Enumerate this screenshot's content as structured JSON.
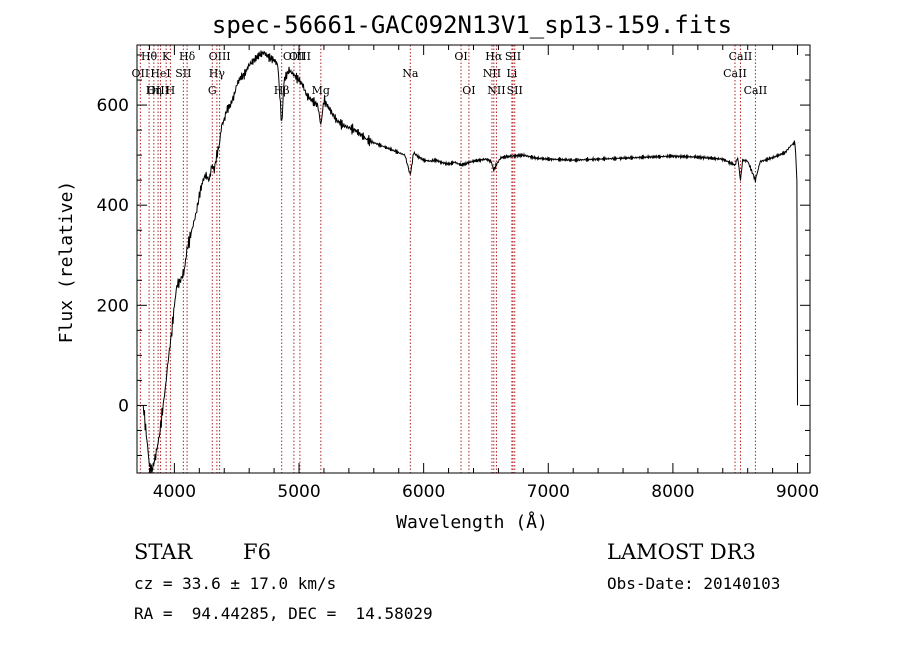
{
  "chart_data": {
    "type": "line",
    "title": "spec-56661-GAC092N13V1_sp13-159.fits",
    "xlabel": "Wavelength (Å)",
    "ylabel": "Flux (relative)",
    "xlim": [
      3700,
      9100
    ],
    "ylim": [
      -135,
      720
    ],
    "xticks": [
      4000,
      5000,
      6000,
      7000,
      8000,
      9000
    ],
    "yticks": [
      0,
      200,
      400,
      600
    ],
    "spectrum": {
      "name": "flux",
      "x": [
        3750,
        3780,
        3800,
        3820,
        3850,
        3880,
        3900,
        3930,
        3950,
        3980,
        4000,
        4020,
        4050,
        4080,
        4100,
        4120,
        4150,
        4180,
        4200,
        4230,
        4250,
        4280,
        4300,
        4320,
        4340,
        4360,
        4380,
        4400,
        4420,
        4450,
        4480,
        4500,
        4530,
        4560,
        4600,
        4640,
        4680,
        4720,
        4760,
        4800,
        4830,
        4861,
        4880,
        4920,
        4960,
        5000,
        5030,
        5060,
        5100,
        5150,
        5175,
        5200,
        5250,
        5300,
        5350,
        5400,
        5450,
        5500,
        5550,
        5600,
        5650,
        5700,
        5750,
        5800,
        5850,
        5893,
        5920,
        5950,
        6000,
        6050,
        6100,
        6150,
        6200,
        6250,
        6300,
        6350,
        6400,
        6450,
        6500,
        6540,
        6563,
        6580,
        6620,
        6700,
        6800,
        6900,
        7000,
        7200,
        7400,
        7600,
        7800,
        8000,
        8200,
        8400,
        8498,
        8520,
        8542,
        8560,
        8600,
        8662,
        8700,
        8800,
        8900,
        8950,
        8980,
        8995,
        9000
      ],
      "y": [
        0,
        -70,
        -120,
        -130,
        -100,
        -60,
        -20,
        40,
        90,
        150,
        200,
        240,
        250,
        270,
        310,
        330,
        360,
        390,
        420,
        450,
        460,
        450,
        480,
        470,
        500,
        520,
        560,
        570,
        590,
        600,
        620,
        640,
        655,
        660,
        680,
        690,
        700,
        705,
        695,
        690,
        680,
        560,
        650,
        670,
        660,
        650,
        640,
        620,
        610,
        600,
        560,
        610,
        590,
        570,
        560,
        555,
        550,
        540,
        530,
        525,
        520,
        515,
        510,
        505,
        500,
        460,
        505,
        498,
        490,
        488,
        490,
        485,
        482,
        486,
        480,
        484,
        488,
        490,
        492,
        488,
        470,
        480,
        495,
        498,
        500,
        494,
        492,
        490,
        492,
        494,
        496,
        498,
        496,
        492,
        480,
        495,
        450,
        490,
        488,
        450,
        487,
        495,
        505,
        520,
        525,
        450,
        0
      ]
    },
    "spectral_lines": [
      {
        "label": "Hθ",
        "wavelength": 3797,
        "label_row": 1
      },
      {
        "label": "OII",
        "wavelength": 3727,
        "label_row": 2
      },
      {
        "label": "OIII",
        "wavelength": 3869,
        "label_row": 3
      },
      {
        "label": "HeI",
        "wavelength": 3889,
        "label_row": 2
      },
      {
        "label": "Hη",
        "wavelength": 3835,
        "label_row": 3
      },
      {
        "label": "K",
        "wavelength": 3934,
        "label_row": 1
      },
      {
        "label": "SII",
        "wavelength": 4072,
        "label_row": 2
      },
      {
        "label": "H",
        "wavelength": 3968,
        "label_row": 3
      },
      {
        "label": "Hδ",
        "wavelength": 4102,
        "label_row": 1
      },
      {
        "label": "OIII",
        "wavelength": 4363,
        "label_row": 1
      },
      {
        "label": "Hγ",
        "wavelength": 4341,
        "label_row": 2
      },
      {
        "label": "G",
        "wavelength": 4304,
        "label_row": 3
      },
      {
        "label": "OIII",
        "wavelength": 4959,
        "label_row": 1
      },
      {
        "label": "OIII",
        "wavelength": 5007,
        "label_row": 1
      },
      {
        "label": "Hβ",
        "wavelength": 4861,
        "label_row": 3
      },
      {
        "label": "Mg",
        "wavelength": 5175,
        "label_row": 3
      },
      {
        "label": "Na",
        "wavelength": 5893,
        "label_row": 2
      },
      {
        "label": "OI",
        "wavelength": 6300,
        "label_row": 1
      },
      {
        "label": "OI",
        "wavelength": 6363,
        "label_row": 3
      },
      {
        "label": "Hα",
        "wavelength": 6563,
        "label_row": 1
      },
      {
        "label": "NII",
        "wavelength": 6548,
        "label_row": 2
      },
      {
        "label": "NII",
        "wavelength": 6584,
        "label_row": 3
      },
      {
        "label": "SII",
        "wavelength": 6717,
        "label_row": 1
      },
      {
        "label": "Li",
        "wavelength": 6708,
        "label_row": 2
      },
      {
        "label": "SII",
        "wavelength": 6731,
        "label_row": 3
      },
      {
        "label": "CaII",
        "wavelength": 8542,
        "label_row": 1
      },
      {
        "label": "CaII",
        "wavelength": 8498,
        "label_row": 2
      },
      {
        "label": "CaII",
        "wavelength": 8662,
        "label_row": 3
      }
    ]
  },
  "info": {
    "class": "STAR",
    "subclass": "F6",
    "survey": "LAMOST DR3",
    "cz": "cz = 33.6 ± 17.0 km/s",
    "obs_date": "Obs-Date: 20140103",
    "coords": "RA =  94.44285, DEC =  14.58029"
  }
}
